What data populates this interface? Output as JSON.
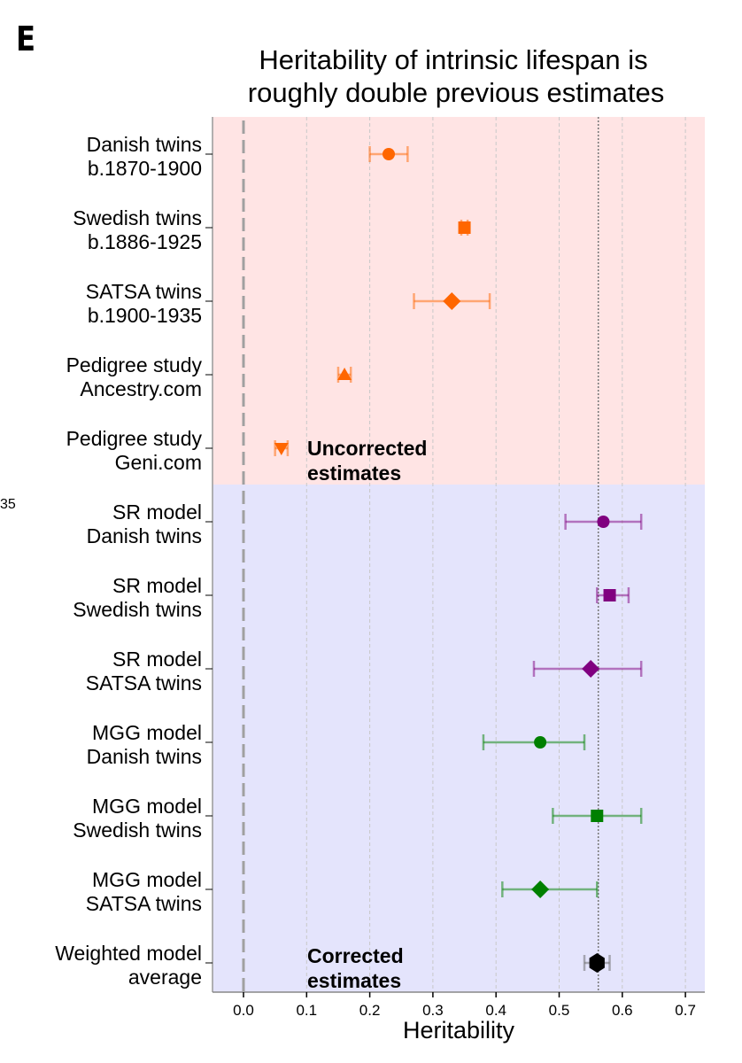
{
  "panel_label": "E",
  "left_fragment": "35",
  "chart_data": {
    "type": "scatter",
    "subtype": "forest-plot",
    "title": [
      "Heritability of intrinsic lifespan is",
      "roughly double previous estimates"
    ],
    "xlabel": "Heritability",
    "ylabel": "",
    "xlim": [
      -0.05,
      0.73
    ],
    "xticks": [
      0.0,
      0.1,
      0.2,
      0.3,
      0.4,
      0.5,
      0.6,
      0.7
    ],
    "xtick_labels": [
      "0.0",
      "0.1",
      "0.2",
      "0.3",
      "0.4",
      "0.5",
      "0.6",
      "0.7"
    ],
    "grid": "vertical dashed",
    "reference_lines": [
      {
        "x": 0.0,
        "style": "dashed",
        "color": "#a0a0a0"
      },
      {
        "x": 0.562,
        "style": "dotted",
        "color": "#777777"
      }
    ],
    "regions": [
      {
        "name": "Uncorrected estimates",
        "rows": [
          0,
          4
        ],
        "color": "#ffe4e4"
      },
      {
        "name": "Corrected estimates",
        "rows": [
          5,
          11
        ],
        "color": "#e4e4fc"
      }
    ],
    "annotations": [
      {
        "text": [
          "Uncorrected",
          "estimates"
        ],
        "region": "top"
      },
      {
        "text": [
          "Corrected",
          "estimates"
        ],
        "region": "bottom"
      }
    ],
    "rows": [
      {
        "label": [
          "Danish twins",
          "b.1870-1900"
        ],
        "value": 0.23,
        "ci": [
          0.2,
          0.26
        ],
        "marker": "circle",
        "color": "#ff6600"
      },
      {
        "label": [
          "Swedish twins",
          "b.1886-1925"
        ],
        "value": 0.35,
        "ci": [
          0.345,
          0.355
        ],
        "marker": "square",
        "color": "#ff6600"
      },
      {
        "label": [
          "SATSA twins",
          "b.1900-1935"
        ],
        "value": 0.33,
        "ci": [
          0.27,
          0.39
        ],
        "marker": "diamond",
        "color": "#ff6600"
      },
      {
        "label": [
          "Pedigree study",
          "Ancestry.com"
        ],
        "value": 0.16,
        "ci": [
          0.15,
          0.17
        ],
        "marker": "triangle-up",
        "color": "#ff6600"
      },
      {
        "label": [
          "Pedigree study",
          "Geni.com"
        ],
        "value": 0.06,
        "ci": [
          0.05,
          0.07
        ],
        "marker": "triangle-down",
        "color": "#ff6600"
      },
      {
        "label": [
          "SR model",
          "Danish twins"
        ],
        "value": 0.57,
        "ci": [
          0.51,
          0.63
        ],
        "marker": "circle",
        "color": "#800080"
      },
      {
        "label": [
          "SR model",
          "Swedish twins"
        ],
        "value": 0.58,
        "ci": [
          0.56,
          0.61
        ],
        "marker": "square",
        "color": "#800080"
      },
      {
        "label": [
          "SR model",
          "SATSA twins"
        ],
        "value": 0.55,
        "ci": [
          0.46,
          0.63
        ],
        "marker": "diamond",
        "color": "#800080"
      },
      {
        "label": [
          "MGG model",
          "Danish twins"
        ],
        "value": 0.47,
        "ci": [
          0.38,
          0.54
        ],
        "marker": "circle",
        "color": "#008000"
      },
      {
        "label": [
          "MGG model",
          "Swedish twins"
        ],
        "value": 0.56,
        "ci": [
          0.49,
          0.63
        ],
        "marker": "square",
        "color": "#008000"
      },
      {
        "label": [
          "MGG model",
          "SATSA twins"
        ],
        "value": 0.47,
        "ci": [
          0.41,
          0.56
        ],
        "marker": "diamond",
        "color": "#008000"
      },
      {
        "label": [
          "Weighted model",
          "average"
        ],
        "value": 0.56,
        "ci": [
          0.54,
          0.58
        ],
        "marker": "hexagon",
        "color": "#000000"
      }
    ]
  }
}
